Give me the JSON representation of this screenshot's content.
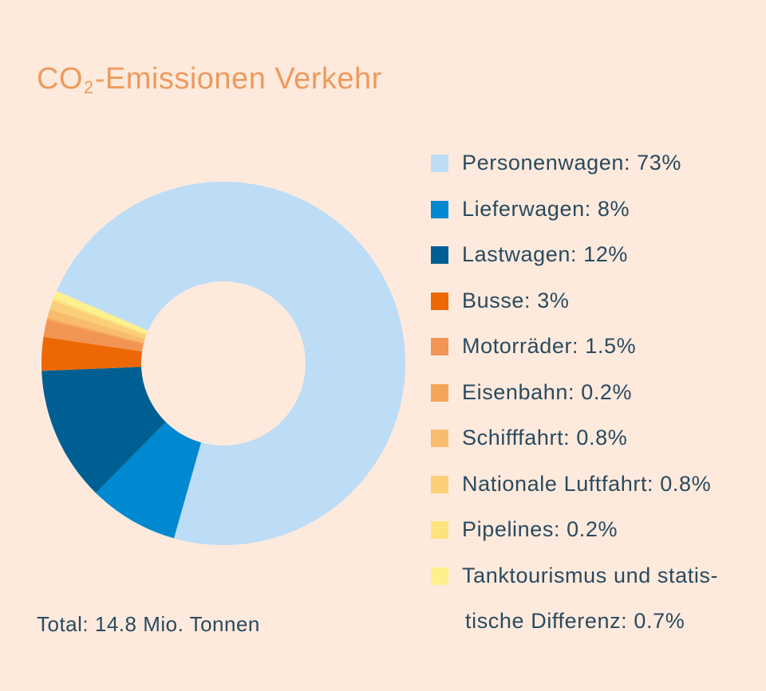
{
  "title": {
    "prefix": "CO",
    "subscript": "2",
    "suffix": "-Emissionen Verkehr"
  },
  "total": "Total: 14.8 Mio. Tonnen",
  "chart_data": {
    "type": "pie",
    "donut": true,
    "title": "CO2-Emissionen Verkehr",
    "unit": "%",
    "series": [
      {
        "name": "Personenwagen",
        "value": 73,
        "label": "Personenwagen: 73%",
        "color": "#bddcf5"
      },
      {
        "name": "Lieferwagen",
        "value": 8,
        "label": "Lieferwagen: 8%",
        "color": "#0089d1"
      },
      {
        "name": "Lastwagen",
        "value": 12,
        "label": "Lastwagen: 12%",
        "color": "#005f92"
      },
      {
        "name": "Busse",
        "value": 3,
        "label": "Busse: 3%",
        "color": "#ed6805"
      },
      {
        "name": "Motorräder",
        "value": 1.5,
        "label": "Motorräder: 1.5%",
        "color": "#f29554"
      },
      {
        "name": "Eisenbahn",
        "value": 0.2,
        "label": "Eisenbahn: 0.2%",
        "color": "#f5a55a"
      },
      {
        "name": "Schifffahrt",
        "value": 0.8,
        "label": "Schifffahrt: 0.8%",
        "color": "#f8bc6e"
      },
      {
        "name": "Nationale Luftfahrt",
        "value": 0.8,
        "label": "Nationale Luftfahrt: 0.8%",
        "color": "#fbcf78"
      },
      {
        "name": "Pipelines",
        "value": 0.2,
        "label": "Pipelines: 0.2%",
        "color": "#fde27d"
      },
      {
        "name": "Tanktourismus und statistische Differenz",
        "value": 0.7,
        "label": "Tanktourismus und statis-",
        "label2": "tische Differenz: 0.7%",
        "color": "#fdf08d"
      }
    ],
    "legend_position": "right"
  }
}
